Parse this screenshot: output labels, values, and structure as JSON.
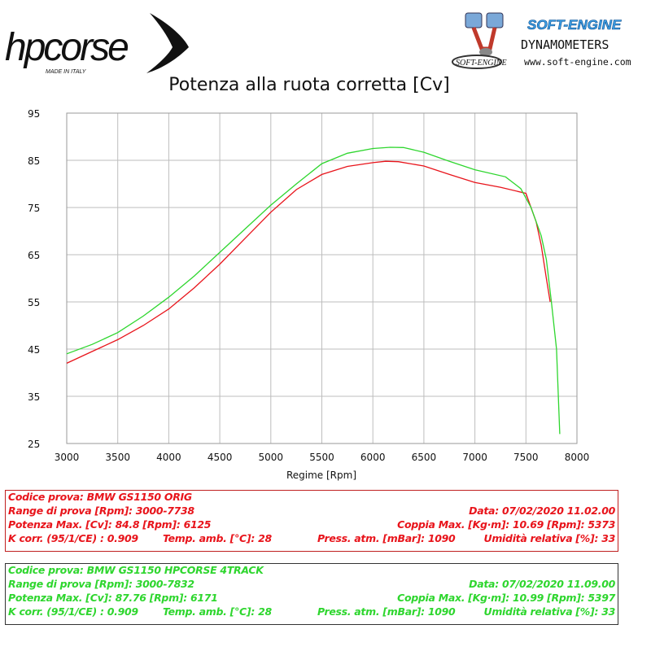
{
  "branding": {
    "hp_logo_text": "hpcorse",
    "hp_logo_tagline": "MADE IN ITALY",
    "se_logo_title": "SOFT-ENGINE",
    "se_logo_subtitle": "DYNAMOMETERS",
    "se_logo_small": "SOFT-ENGINE",
    "se_logo_url": "www.soft-engine.com"
  },
  "colors": {
    "orig": "#e8141b",
    "hpcorse": "#2ed62e",
    "grid": "#bdbdbd"
  },
  "chart_data": {
    "type": "line",
    "title": "Potenza alla ruota corretta [Cv]",
    "xlabel": "Regime [Rpm]",
    "ylabel": "",
    "xlim": [
      3000,
      8000
    ],
    "ylim": [
      25,
      95
    ],
    "xticks": [
      3000,
      3500,
      4000,
      4500,
      5000,
      5500,
      6000,
      6500,
      7000,
      7500,
      8000
    ],
    "yticks": [
      25,
      35,
      45,
      55,
      65,
      75,
      85,
      95
    ],
    "grid": true,
    "legend": "none",
    "series": [
      {
        "name": "BMW GS1150 ORIG",
        "color": "#e8141b",
        "x": [
          3000,
          3250,
          3500,
          3750,
          4000,
          4250,
          4500,
          4750,
          5000,
          5250,
          5500,
          5750,
          6000,
          6125,
          6250,
          6500,
          6750,
          7000,
          7250,
          7500,
          7600,
          7650,
          7700,
          7738
        ],
        "y": [
          42.0,
          44.5,
          47.0,
          50.0,
          53.5,
          58.0,
          63.0,
          68.5,
          74.0,
          78.8,
          82.0,
          83.7,
          84.5,
          84.8,
          84.7,
          83.8,
          82.0,
          80.3,
          79.3,
          78.0,
          72.0,
          67.0,
          60.0,
          55.0
        ]
      },
      {
        "name": "BMW GS1150 HPCORSE 4TRACK",
        "color": "#2ed62e",
        "x": [
          3000,
          3250,
          3500,
          3750,
          4000,
          4250,
          4500,
          4750,
          5000,
          5250,
          5500,
          5750,
          6000,
          6171,
          6300,
          6500,
          6750,
          7000,
          7300,
          7450,
          7550,
          7650,
          7700,
          7750,
          7800,
          7832
        ],
        "y": [
          44.0,
          46.0,
          48.5,
          52.0,
          56.0,
          60.5,
          65.5,
          70.5,
          75.5,
          80.0,
          84.3,
          86.5,
          87.5,
          87.76,
          87.7,
          86.7,
          84.8,
          83.0,
          81.5,
          79.0,
          75.0,
          69.0,
          64.0,
          55.0,
          45.0,
          27.0
        ]
      }
    ]
  },
  "tests": [
    {
      "codice": "Codice prova: BMW GS1150 ORIG",
      "range": "Range di prova [Rpm]: 3000-7738",
      "data": "Data: 07/02/2020  11.02.00",
      "potenza": "Potenza Max. [Cv]: 84.8  [Rpm]: 6125",
      "coppia": "Coppia Max. [Kg·m]: 10.69  [Rpm]: 5373",
      "kcorr": "K corr. (95/1/CE) : 0.909",
      "temp": "Temp. amb. [°C]: 28",
      "press": "Press. atm. [mBar]: 1090",
      "umid": "Umidità relativa [%]: 33"
    },
    {
      "codice": "Codice prova: BMW GS1150 HPCORSE 4TRACK",
      "range": "Range di prova [Rpm]: 3000-7832",
      "data": "Data: 07/02/2020  11.09.00",
      "potenza": "Potenza Max. [Cv]: 87.76  [Rpm]: 6171",
      "coppia": "Coppia Max. [Kg·m]: 10.99  [Rpm]: 5397",
      "kcorr": "K corr. (95/1/CE) : 0.909",
      "temp": "Temp. amb. [°C]: 28",
      "press": "Press. atm. [mBar]: 1090",
      "umid": "Umidità relativa [%]: 33"
    }
  ]
}
